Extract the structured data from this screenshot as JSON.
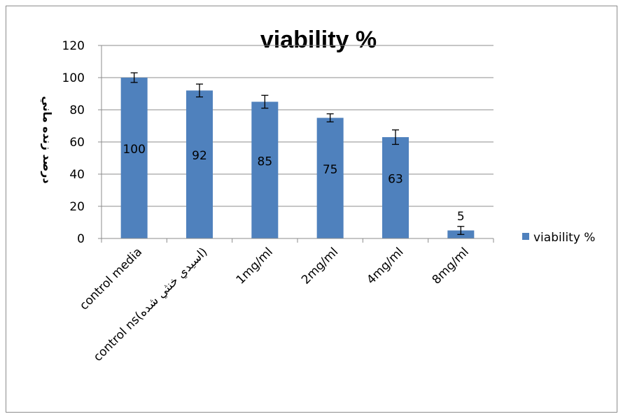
{
  "chart_data": {
    "type": "bar",
    "title": "viability %",
    "ylabel": "درصد زنده ماني",
    "xlabel": "",
    "ylim": [
      0,
      120
    ],
    "yticks": [
      0,
      20,
      40,
      60,
      80,
      100,
      120
    ],
    "grid": true,
    "legend_position": "right",
    "categories": [
      "control media",
      "control ns(اسيدي خنثي شده)",
      "1mg/ml",
      "2mg/ml",
      "4mg/ml",
      "8mg/ml"
    ],
    "series": [
      {
        "name": "viability %",
        "values": [
          100,
          92,
          85,
          75,
          63,
          5
        ],
        "data_labels": [
          "100",
          "92",
          "85",
          "75",
          "63",
          "5"
        ],
        "error": [
          3,
          4,
          4,
          2.5,
          4.5,
          2.5
        ],
        "color": "#4f81bd"
      }
    ]
  }
}
